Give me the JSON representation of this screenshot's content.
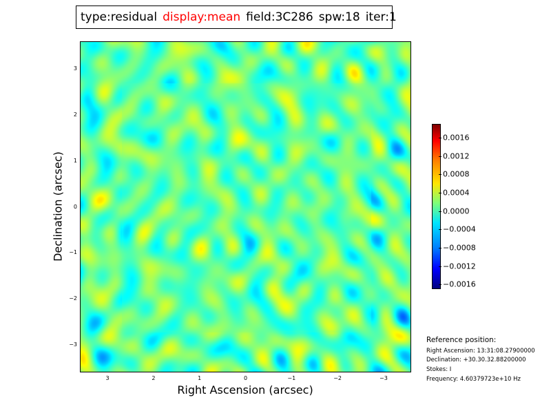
{
  "title": {
    "type": "type:residual",
    "display": "display:mean",
    "field": "field:3C286",
    "spw": "spw:18",
    "iter": "iter:1",
    "display_color": "#ff0000"
  },
  "chart_data": {
    "type": "heatmap",
    "title": "type:residual display:mean field:3C286 spw:18 iter:1",
    "xlabel": "Right Ascension (arcsec)",
    "ylabel": "Declination (arcsec)",
    "x_ticks": [
      3,
      2,
      1,
      0,
      -1,
      -2,
      -3
    ],
    "x_tick_labels": [
      "3",
      "2",
      "1",
      "0",
      "−1",
      "−2",
      "−3"
    ],
    "y_ticks": [
      3,
      2,
      1,
      0,
      -1,
      -2,
      -3
    ],
    "y_tick_labels": [
      "3",
      "2",
      "1",
      "0",
      "−1",
      "−2",
      "−3"
    ],
    "xlim": [
      3.6,
      -3.6
    ],
    "ylim": [
      -3.6,
      3.6
    ],
    "colorbar": {
      "label": "",
      "range": [
        -0.0017,
        0.0019
      ],
      "ticks": [
        0.0016,
        0.0012,
        0.0008,
        0.0004,
        0.0,
        -0.0004,
        -0.0008,
        -0.0012,
        -0.0016
      ],
      "tick_labels": [
        "0.0016",
        "0.0012",
        "0.0008",
        "0.0004",
        "0.0000",
        "−0.0004",
        "−0.0008",
        "−0.0012",
        "−0.0016"
      ],
      "colormap": "jet"
    },
    "description_note": "Residual image noise field with speckle-like structure; values mostly near zero."
  },
  "reference": {
    "heading": "Reference position:",
    "ra": "Right Ascension: 13:31:08.27900000",
    "dec": "Declination: +30.30.32.88200000",
    "stokes": "Stokes: I",
    "frequency": "Frequency: 4.60379723e+10 Hz"
  }
}
